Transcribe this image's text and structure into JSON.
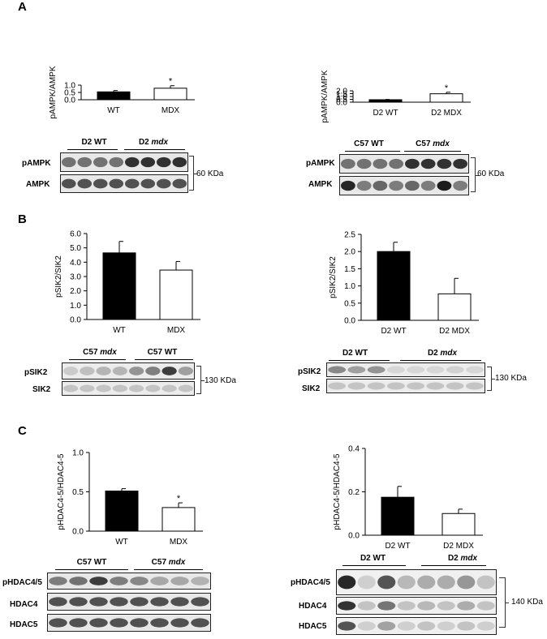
{
  "panels": {
    "a": "A",
    "b": "B",
    "c": "C"
  },
  "chart_data": [
    {
      "id": "a-left",
      "type": "bar",
      "categories": [
        "WT",
        "MDX"
      ],
      "values": [
        0.54,
        0.79
      ],
      "errors": [
        0.09,
        0.17
      ],
      "ylabel": "pAMPK/AMPK",
      "ylim": [
        0,
        1.0
      ],
      "ticks": [
        0.0,
        0.5,
        1.0
      ],
      "tick_labels": [
        "0.0",
        "0.5",
        "1.0"
      ],
      "star": [
        false,
        true
      ],
      "star_text": "*"
    },
    {
      "id": "a-right",
      "type": "bar",
      "categories": [
        "D2 WT",
        "D2 MDX"
      ],
      "values": [
        0.43,
        1.48
      ],
      "errors": [
        0.05,
        0.27
      ],
      "ylabel": "pAMPK/AMPK",
      "ylim": [
        0,
        2.0
      ],
      "ticks": [
        0.0,
        0.5,
        1.0,
        1.5,
        2.0
      ],
      "tick_labels": [
        "0.0",
        "0.5",
        "1.0",
        "1.5",
        "2.0"
      ],
      "star": [
        false,
        true
      ],
      "star_text": "*"
    },
    {
      "id": "b-left",
      "type": "bar",
      "categories": [
        "WT",
        "MDX"
      ],
      "values": [
        4.65,
        3.45
      ],
      "errors": [
        0.8,
        0.6
      ],
      "ylabel": "pSIK2/SIK2",
      "ylim": [
        0,
        6.0
      ],
      "ticks": [
        0,
        1,
        2,
        3,
        4,
        5,
        6
      ],
      "tick_labels": [
        "0.0",
        "1.0",
        "2.0",
        "3.0",
        "4.0",
        "5.0",
        "6.0"
      ],
      "star": [
        false,
        false
      ],
      "star_text": "*"
    },
    {
      "id": "b-right",
      "type": "bar",
      "categories": [
        "D2 WT",
        "D2 MDX"
      ],
      "values": [
        2.0,
        0.77
      ],
      "errors": [
        0.27,
        0.45
      ],
      "ylabel": "pSIK2/SIK2",
      "ylim": [
        0,
        2.5
      ],
      "ticks": [
        0.0,
        0.5,
        1.0,
        1.5,
        2.0,
        2.5
      ],
      "tick_labels": [
        "0.0",
        "0.5",
        "1.0",
        "1.5",
        "2.0",
        "2.5"
      ],
      "star": [
        false,
        false
      ],
      "star_text": "*"
    },
    {
      "id": "c-left",
      "type": "bar",
      "categories": [
        "WT",
        "MDX"
      ],
      "values": [
        0.51,
        0.3
      ],
      "errors": [
        0.03,
        0.06
      ],
      "ylabel": "pHDAC4-5/HDAC4-5",
      "ylim": [
        0,
        1.0
      ],
      "ticks": [
        0.0,
        0.5,
        1.0
      ],
      "tick_labels": [
        "0.0",
        "0.5",
        "1.0"
      ],
      "star": [
        false,
        true
      ],
      "star_text": "*"
    },
    {
      "id": "c-right",
      "type": "bar",
      "categories": [
        "D2 WT",
        "D2 MDX"
      ],
      "values": [
        0.175,
        0.1
      ],
      "errors": [
        0.05,
        0.02
      ],
      "ylabel": "pHDAC4-5/HDAC4-5",
      "ylim": [
        0,
        0.4
      ],
      "ticks": [
        0.0,
        0.2,
        0.4
      ],
      "tick_labels": [
        "0.0",
        "0.2",
        "0.4"
      ],
      "star": [
        false,
        false
      ],
      "star_text": "*"
    }
  ],
  "blots": {
    "a_left": {
      "group1": "D2 WT",
      "group2_prefix": "D2 ",
      "group2_italic": "mdx",
      "row1": "pAMPK",
      "row2": "AMPK",
      "kda": "60 KDa"
    },
    "a_right": {
      "group1": "C57 WT",
      "group2_prefix": "C57 ",
      "group2_italic": "mdx",
      "row1": "pAMPK",
      "row2": "AMPK",
      "kda": "60 KDa"
    },
    "b_left": {
      "group1_prefix": "C57 ",
      "group1_italic": "mdx",
      "group2": "C57 WT",
      "row1": "pSIK2",
      "row2": "SIK2",
      "kda": "130 KDa"
    },
    "b_right": {
      "group1": "D2 WT",
      "group2_prefix": "D2 ",
      "group2_italic": "mdx",
      "row1": "pSIK2",
      "row2": "SIK2",
      "kda": "130 KDa"
    },
    "c_left": {
      "group1": "C57 WT",
      "group2_prefix": "C57 ",
      "group2_italic": "mdx",
      "row1": "pHDAC4/5",
      "row2": "HDAC4",
      "row3": "HDAC5"
    },
    "c_right": {
      "group1": "D2 WT",
      "group2_prefix": "D2 ",
      "group2_italic": "mdx",
      "row1": "pHDAC4/5",
      "row2": "HDAC4",
      "row3": "HDAC5",
      "kda": "140 KDa"
    }
  }
}
